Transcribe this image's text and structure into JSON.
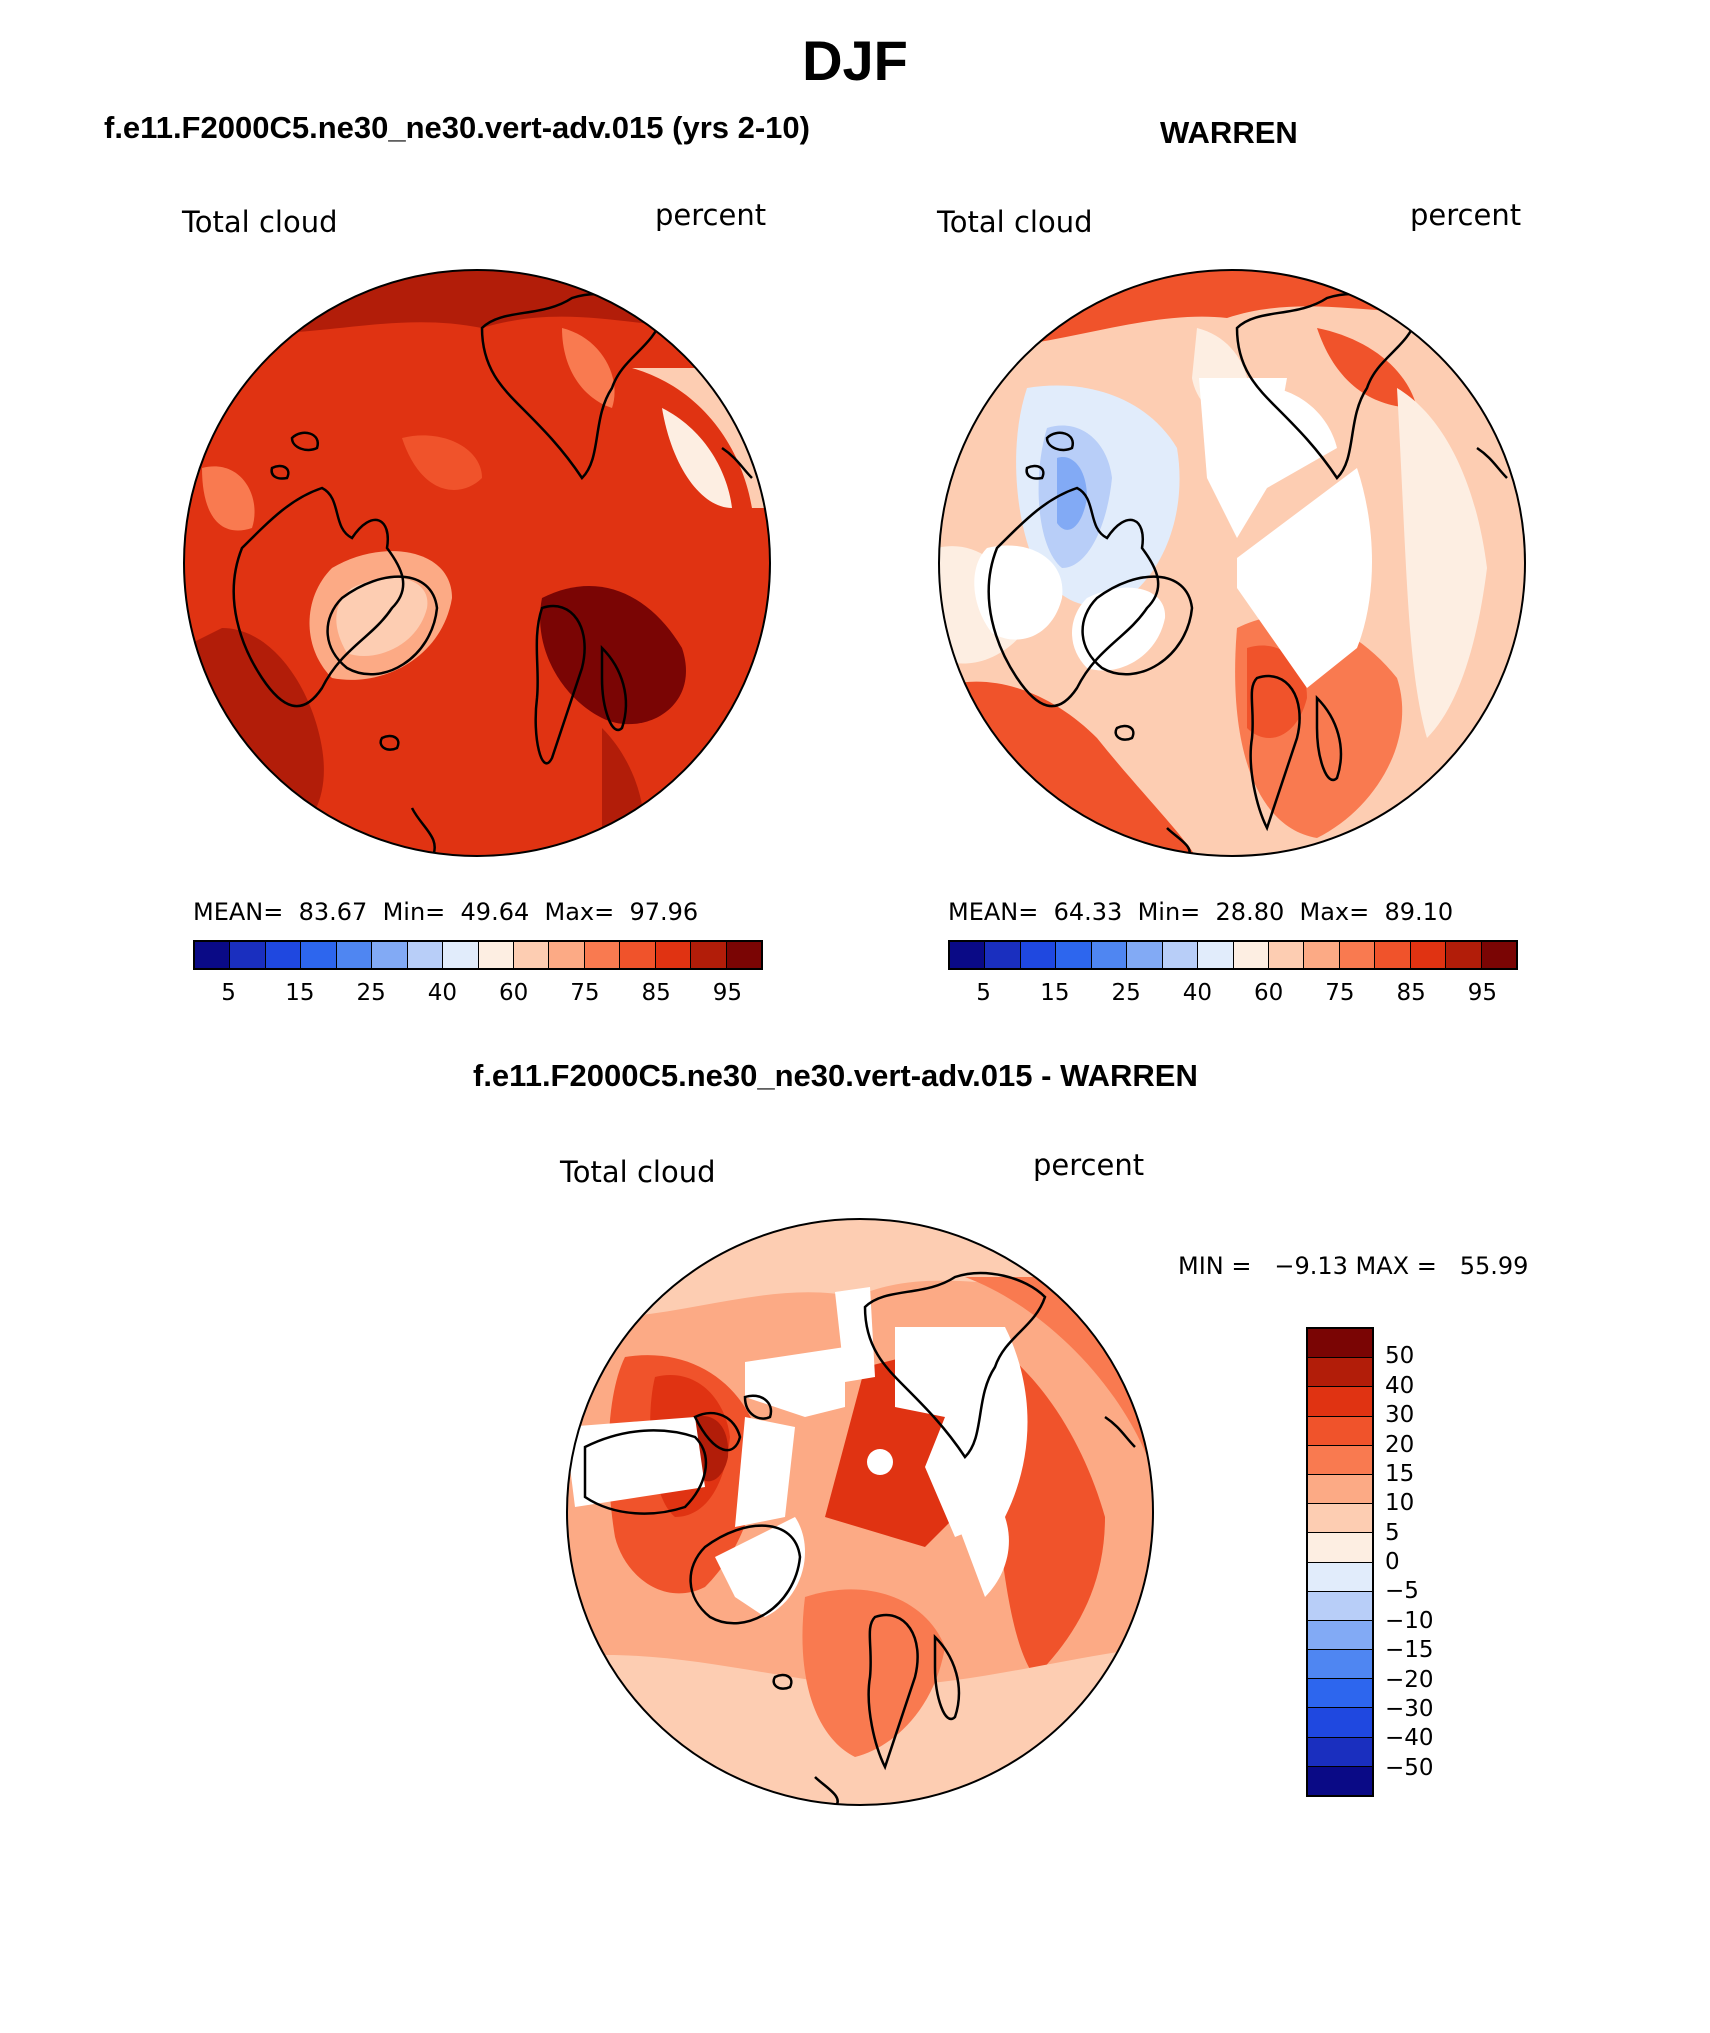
{
  "page_title": "DJF",
  "panels": [
    {
      "title": "f.e11.F2000C5.ne30_ne30.vert-adv.015 (yrs 2-10)",
      "variable": "Total cloud",
      "units": "percent",
      "stats": "MEAN=  83.67  Min=  49.64  Max=  97.96",
      "colorbar_labels": [
        "5",
        "15",
        "25",
        "40",
        "60",
        "75",
        "85",
        "95"
      ]
    },
    {
      "title": "WARREN",
      "variable": "Total cloud",
      "units": "percent",
      "stats": "MEAN=  64.33  Min=  28.80  Max=  89.10",
      "colorbar_labels": [
        "5",
        "15",
        "25",
        "40",
        "60",
        "75",
        "85",
        "95"
      ]
    },
    {
      "title": "f.e11.F2000C5.ne30_ne30.vert-adv.015 - WARREN",
      "variable": "Total cloud",
      "units": "percent",
      "stats": "MIN =   −9.13 MAX =   55.99",
      "colorbar_labels": [
        "50",
        "40",
        "30",
        "20",
        "15",
        "10",
        "5",
        "0",
        "−5",
        "−10",
        "−15",
        "−20",
        "−30",
        "−40",
        "−50"
      ]
    }
  ],
  "colors": {
    "abs_scale": [
      "#0a0a86",
      "#1a2fbf",
      "#1f48e0",
      "#2d66ee",
      "#4f86f2",
      "#82aaf5",
      "#b8cef8",
      "#e1ecfb",
      "#fdeee2",
      "#fdcdb2",
      "#fcaa85",
      "#f97a50",
      "#f0532b",
      "#e03312",
      "#b21d09",
      "#7a0504"
    ],
    "diff_scale": [
      "#7a0504",
      "#b21d09",
      "#e03312",
      "#f0532b",
      "#f97a50",
      "#fcaa85",
      "#fdcdb2",
      "#fdeee2",
      "#e1ecfb",
      "#b8cef8",
      "#82aaf5",
      "#4f86f2",
      "#2d66ee",
      "#1f48e0",
      "#1a2fbf",
      "#0a0a86"
    ],
    "coastline": "#000000",
    "missing": "#ffffff"
  }
}
